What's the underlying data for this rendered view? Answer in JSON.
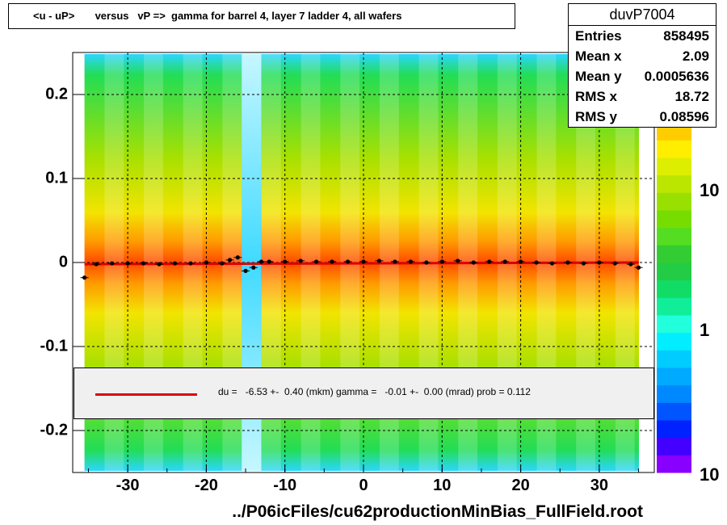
{
  "title": "<u - uP>       versus   vP =>  gamma for barrel 4, layer 7 ladder 4, all wafers",
  "stats": {
    "name": "duvP7004",
    "rows": [
      {
        "label": "Entries",
        "value": "858495"
      },
      {
        "label": "Mean x",
        "value": "2.09"
      },
      {
        "label": "Mean y",
        "value": "0.0005636"
      },
      {
        "label": "RMS x",
        "value": "18.72"
      },
      {
        "label": "RMS y",
        "value": "0.08596"
      }
    ]
  },
  "fit_legend": "du =   -6.53 +-  0.40 (mkm) gamma =   -0.01 +-  0.00 (mrad) prob = 0.112",
  "xlabel": "../P06icFiles/cu62productionMinBias_FullField.root",
  "colors": {
    "fit_line": "#dd0000",
    "profile_points": "#000000",
    "grid": "#000000"
  },
  "chart_data": {
    "type": "heatmap",
    "xlim": [
      -37,
      37
    ],
    "ylim": [
      -0.25,
      0.25
    ],
    "x_ticks": [
      "-30",
      "-20",
      "-10",
      "0",
      "10",
      "20",
      "30"
    ],
    "y_ticks": [
      "0.2",
      "0.1",
      "0",
      "-0.1",
      "-0.2"
    ],
    "z_ticks": [
      "10",
      "1",
      "10"
    ],
    "grid": true,
    "z_scale": "log",
    "x_data_range": [
      -35.5,
      35
    ],
    "sparse_band": [
      -17.5,
      -13.5
    ],
    "fit": {
      "du": -6.53,
      "du_err": 0.4,
      "gamma": -0.01,
      "gamma_err": 0.0,
      "prob": 0.112
    },
    "profile": {
      "x": [
        -35.5,
        -34,
        -32,
        -30,
        -28,
        -26,
        -24,
        -22,
        -20,
        -18,
        -17,
        -16,
        -15,
        -14,
        -13,
        -12,
        -10,
        -8,
        -6,
        -4,
        -2,
        0,
        2,
        4,
        6,
        8,
        10,
        12,
        14,
        16,
        18,
        20,
        22,
        24,
        26,
        28,
        30,
        32,
        34,
        35
      ],
      "y": [
        -0.018,
        -0.002,
        -0.001,
        -0.001,
        -0.001,
        -0.002,
        -0.001,
        -0.001,
        0.0,
        -0.001,
        0.003,
        0.006,
        -0.01,
        -0.006,
        0.001,
        0.001,
        0.001,
        0.002,
        0.001,
        0.001,
        0.001,
        0.001,
        0.002,
        0.001,
        0.001,
        0.0,
        0.001,
        0.002,
        0.0,
        0.001,
        0.001,
        0.001,
        0.0,
        -0.001,
        0.0,
        -0.001,
        0.0,
        -0.001,
        -0.002,
        -0.006
      ]
    },
    "fit_line": {
      "x": [
        -35.5,
        35
      ],
      "y": [
        -0.002,
        0.0
      ]
    }
  }
}
